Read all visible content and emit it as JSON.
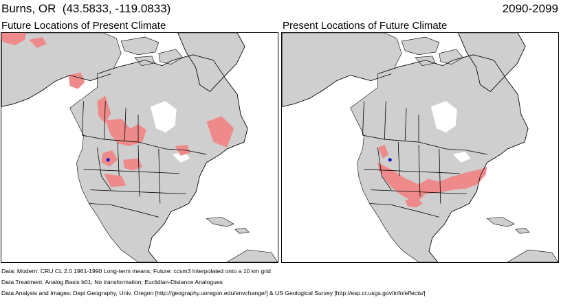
{
  "header": {
    "location": "Burns, OR  (43.5833, -119.0833)",
    "period": "2090-2099"
  },
  "panels": [
    {
      "label": "Future Locations of Present Climate"
    },
    {
      "label": "Present Locations of Future Climate"
    }
  ],
  "footer": {
    "line1": "Data:  Modern: CRU CL 2.0 1961-1990 Long-term means; Future: ccsm3 Interpolated onto a 10 km grid",
    "line2": "Data Treatment:  Analog Basis b01; No transformation; Euclidian-Distance Analogues",
    "line3": "Data Analysis and Images:  Dept Geography, Univ. Oregon [http://geography.uoregon.edu/envchange/] & US Geological Survey [http://esp.cr.usgs.gov/info/effects/]"
  },
  "colors": {
    "land": "#cfcfcf",
    "water": "#ffffff",
    "analog": "#ee8a8a",
    "site_marker": "#1a1acc",
    "boundary": "#000000"
  }
}
